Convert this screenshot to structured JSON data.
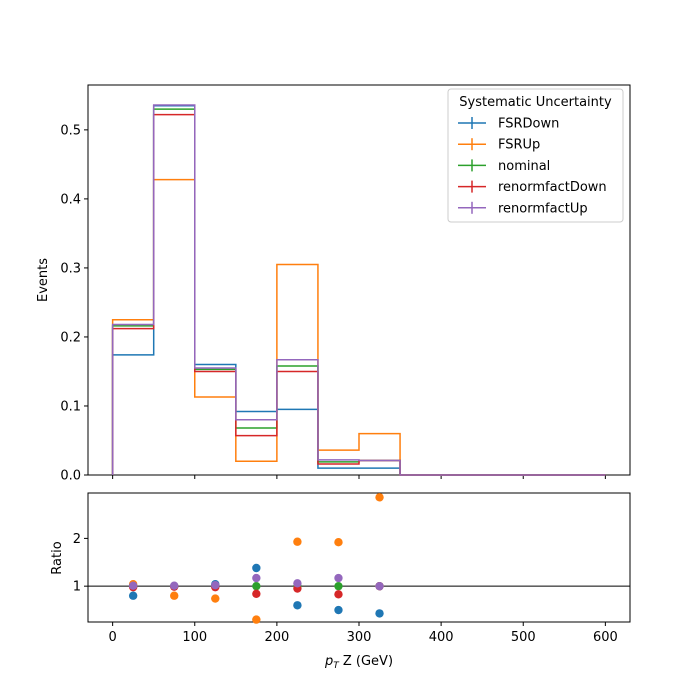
{
  "chart_data": [
    {
      "type": "histogram-step",
      "xlabel_main": "p",
      "xlabel_sub": "T",
      "xlabel_rest": " Z (GeV)",
      "ylabel": "Events",
      "xlim": [
        -30,
        630
      ],
      "ylim": [
        0,
        0.565
      ],
      "x_ticks": [
        0,
        100,
        200,
        300,
        400,
        500,
        600
      ],
      "y_ticks": [
        0.0,
        0.1,
        0.2,
        0.3,
        0.4,
        0.5
      ],
      "y_tick_labels": [
        "0.0",
        "0.1",
        "0.2",
        "0.3",
        "0.4",
        "0.5"
      ],
      "bin_edges": [
        0,
        50,
        100,
        150,
        200,
        250,
        300,
        350,
        400,
        450,
        500,
        550,
        600
      ],
      "legend_title": "Systematic Uncertainty",
      "legend_position": "top-right",
      "series": [
        {
          "name": "FSRDown",
          "color": "#1f77b4",
          "values": [
            0.174,
            0.535,
            0.16,
            0.092,
            0.095,
            0.01,
            0.01,
            0.0,
            0.0,
            0.0,
            0.0,
            0.0
          ]
        },
        {
          "name": "FSRUp",
          "color": "#ff7f0e",
          "values": [
            0.225,
            0.428,
            0.113,
            0.02,
            0.305,
            0.036,
            0.06,
            0.0,
            0.0,
            0.0,
            0.0,
            0.0
          ]
        },
        {
          "name": "nominal",
          "color": "#2ca02c",
          "values": [
            0.216,
            0.53,
            0.153,
            0.068,
            0.158,
            0.019,
            0.021,
            0.0,
            0.0,
            0.0,
            0.0,
            0.0
          ]
        },
        {
          "name": "renormfactDown",
          "color": "#d62728",
          "values": [
            0.212,
            0.522,
            0.15,
            0.057,
            0.15,
            0.016,
            0.021,
            0.0,
            0.0,
            0.0,
            0.0,
            0.0
          ]
        },
        {
          "name": "renormfactUp",
          "color": "#9467bd",
          "values": [
            0.218,
            0.536,
            0.155,
            0.08,
            0.167,
            0.022,
            0.021,
            0.0,
            0.0,
            0.0,
            0.0,
            0.0
          ]
        }
      ]
    },
    {
      "type": "scatter",
      "ylabel": "Ratio",
      "ylim": [
        0.25,
        2.95
      ],
      "y_ticks": [
        1,
        2
      ],
      "y_tick_labels": [
        "1",
        "2"
      ],
      "reference_line": 1,
      "x": [
        25,
        75,
        125,
        175,
        225,
        275,
        325
      ],
      "series": [
        {
          "name": "FSRDown",
          "color": "#1f77b4",
          "values": [
            0.8,
            1.0,
            1.04,
            1.38,
            0.6,
            0.5,
            0.43
          ]
        },
        {
          "name": "FSRUp",
          "color": "#ff7f0e",
          "values": [
            1.04,
            0.8,
            0.74,
            0.3,
            1.93,
            1.92,
            2.86
          ]
        },
        {
          "name": "nominal",
          "color": "#2ca02c",
          "values": [
            1.0,
            1.0,
            1.0,
            1.0,
            1.0,
            1.0,
            1.0
          ]
        },
        {
          "name": "renormfactDown",
          "color": "#d62728",
          "values": [
            0.98,
            0.99,
            0.98,
            0.84,
            0.95,
            0.83,
            1.0
          ]
        },
        {
          "name": "renormfactUp",
          "color": "#9467bd",
          "values": [
            1.01,
            1.01,
            1.02,
            1.17,
            1.06,
            1.17,
            1.0
          ]
        }
      ]
    }
  ]
}
